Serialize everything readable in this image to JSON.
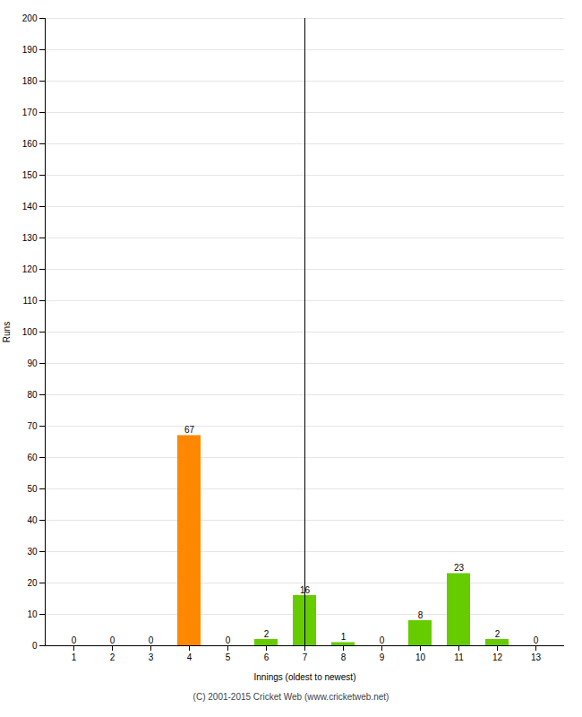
{
  "chart_data": {
    "type": "bar",
    "xlabel": "Innings (oldest to newest)",
    "ylabel": "Runs",
    "categories": [
      "1",
      "2",
      "3",
      "4",
      "5",
      "6",
      "7",
      "8",
      "9",
      "10",
      "11",
      "12",
      "13"
    ],
    "values": [
      0,
      0,
      0,
      67,
      0,
      2,
      16,
      1,
      0,
      8,
      23,
      2,
      0
    ],
    "colors": [
      "#66cc00",
      "#66cc00",
      "#66cc00",
      "#ff8800",
      "#66cc00",
      "#66cc00",
      "#66cc00",
      "#66cc00",
      "#66cc00",
      "#66cc00",
      "#66cc00",
      "#66cc00",
      "#66cc00"
    ],
    "ylim": [
      0,
      200
    ],
    "yticks": [
      0,
      10,
      20,
      30,
      40,
      50,
      60,
      70,
      80,
      90,
      100,
      110,
      120,
      130,
      140,
      150,
      160,
      170,
      180,
      190,
      200
    ],
    "grid": true,
    "data_labels": true,
    "annotations": [
      "(C) 2001-2015 Cricket Web (www.cricketweb.net)"
    ]
  }
}
